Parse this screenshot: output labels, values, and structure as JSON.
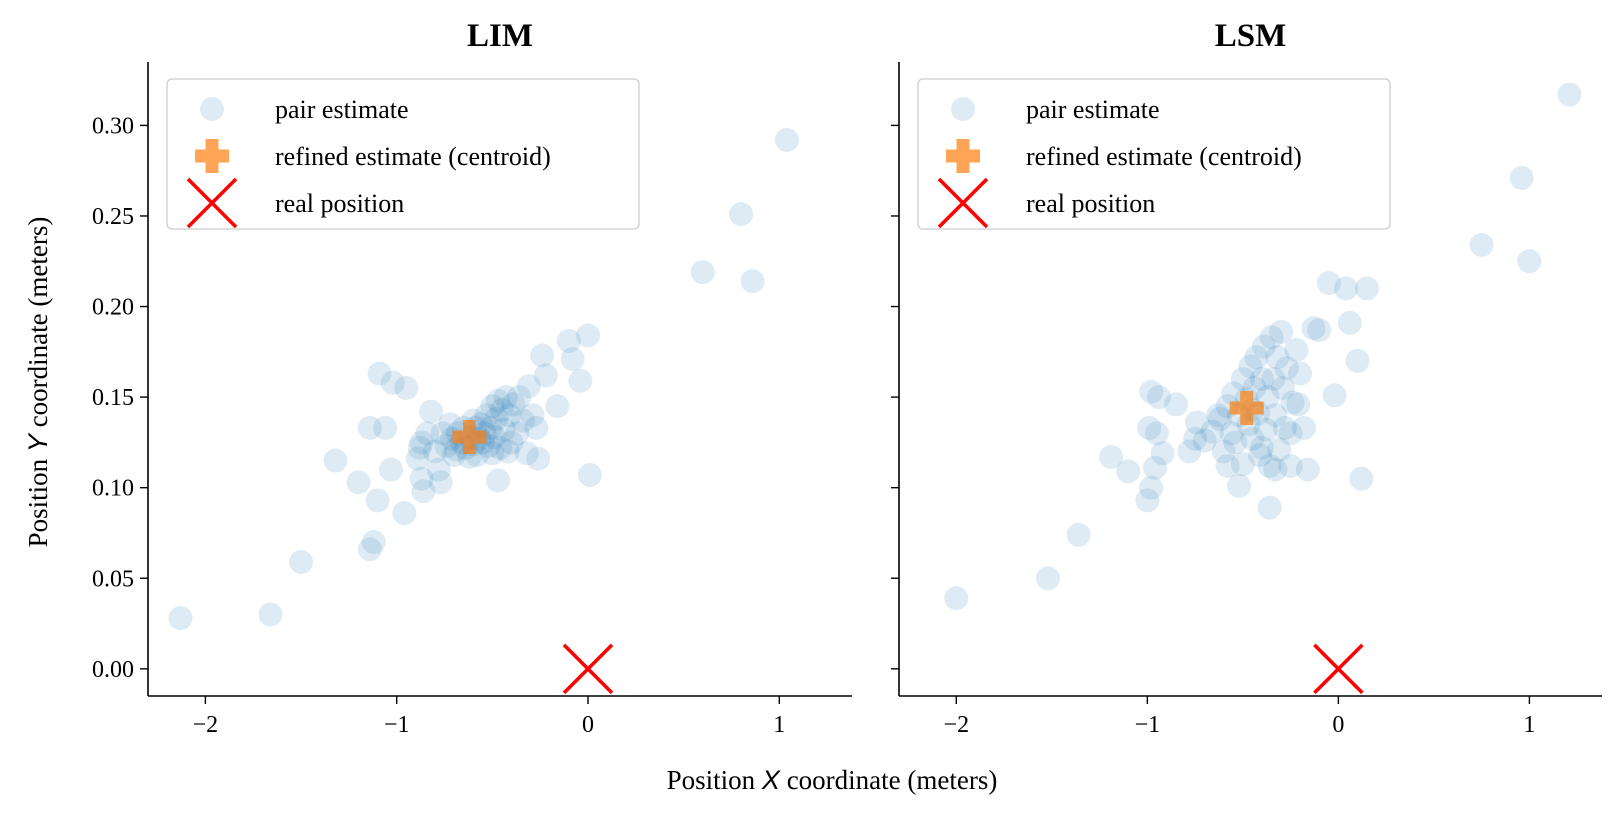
{
  "figure": {
    "ylabel_prefix": "Position ",
    "ylabel_var": "Y",
    "ylabel_suffix": " coordinate (meters)",
    "xlabel_prefix": "Position ",
    "xlabel_var": "X",
    "xlabel_suffix": " coordinate (meters)"
  },
  "legend": [
    {
      "label": "pair estimate",
      "marker": "circle",
      "color": "#1f77b4"
    },
    {
      "label": "refined estimate (centroid)",
      "marker": "plus",
      "color": "#ff7f0e"
    },
    {
      "label": "real position",
      "marker": "x",
      "color": "#ff0000"
    }
  ],
  "chart_data": [
    {
      "type": "scatter",
      "title": "LIM",
      "xlim": [
        -2.3,
        1.38
      ],
      "ylim": [
        -0.015,
        0.335
      ],
      "xticks": [
        -2,
        -1,
        0,
        1
      ],
      "xtick_labels": [
        "−2",
        "−1",
        "0",
        "1"
      ],
      "yticks": [
        0.0,
        0.05,
        0.1,
        0.15,
        0.2,
        0.25,
        0.3
      ],
      "ytick_labels": [
        "0.00",
        "0.05",
        "0.10",
        "0.15",
        "0.20",
        "0.25",
        "0.30"
      ],
      "grid": false,
      "legend_position": "upper-left",
      "series": [
        {
          "name": "pair estimate",
          "kind": "scatter",
          "color": "#1f77b4",
          "alpha": 0.15,
          "points": [
            [
              -2.13,
              0.028
            ],
            [
              -1.66,
              0.03
            ],
            [
              -1.5,
              0.059
            ],
            [
              -1.32,
              0.115
            ],
            [
              -1.2,
              0.103
            ],
            [
              -1.14,
              0.066
            ],
            [
              -1.12,
              0.07
            ],
            [
              -1.1,
              0.093
            ],
            [
              -1.06,
              0.133
            ],
            [
              -1.09,
              0.163
            ],
            [
              -1.02,
              0.158
            ],
            [
              -1.03,
              0.11
            ],
            [
              -0.96,
              0.086
            ],
            [
              -0.95,
              0.155
            ],
            [
              -0.89,
              0.116
            ],
            [
              -0.87,
              0.125
            ],
            [
              -0.87,
              0.105
            ],
            [
              -0.86,
              0.098
            ],
            [
              -0.84,
              0.13
            ],
            [
              -0.82,
              0.142
            ],
            [
              -0.8,
              0.12
            ],
            [
              -0.78,
              0.11
            ],
            [
              -0.77,
              0.103
            ],
            [
              -0.76,
              0.13
            ],
            [
              -0.74,
              0.123
            ],
            [
              -0.72,
              0.135
            ],
            [
              -0.71,
              0.127
            ],
            [
              -0.7,
              0.118
            ],
            [
              -0.68,
              0.13
            ],
            [
              -0.66,
              0.125
            ],
            [
              -0.65,
              0.133
            ],
            [
              -0.64,
              0.122
            ],
            [
              -0.62,
              0.128
            ],
            [
              -0.6,
              0.124
            ],
            [
              -0.59,
              0.133
            ],
            [
              -0.58,
              0.118
            ],
            [
              -0.57,
              0.127
            ],
            [
              -0.56,
              0.135
            ],
            [
              -0.55,
              0.125
            ],
            [
              -0.54,
              0.13
            ],
            [
              -0.53,
              0.14
            ],
            [
              -0.52,
              0.123
            ],
            [
              -0.51,
              0.133
            ],
            [
              -0.5,
              0.145
            ],
            [
              -0.49,
              0.128
            ],
            [
              -0.48,
              0.138
            ],
            [
              -0.47,
              0.148
            ],
            [
              -0.46,
              0.122
            ],
            [
              -0.45,
              0.143
            ],
            [
              -0.44,
              0.132
            ],
            [
              -0.43,
              0.15
            ],
            [
              -0.42,
              0.12
            ],
            [
              -0.41,
              0.14
            ],
            [
              -0.4,
              0.125
            ],
            [
              -0.39,
              0.146
            ],
            [
              -0.37,
              0.13
            ],
            [
              -0.36,
              0.15
            ],
            [
              -0.34,
              0.137
            ],
            [
              -0.32,
              0.119
            ],
            [
              -0.31,
              0.156
            ],
            [
              -0.29,
              0.14
            ],
            [
              -0.27,
              0.133
            ],
            [
              -0.26,
              0.116
            ],
            [
              -0.24,
              0.173
            ],
            [
              -0.22,
              0.162
            ],
            [
              -0.16,
              0.145
            ],
            [
              -0.1,
              0.181
            ],
            [
              -0.08,
              0.171
            ],
            [
              -0.04,
              0.159
            ],
            [
              0.0,
              0.184
            ],
            [
              0.01,
              0.107
            ],
            [
              -0.47,
              0.104
            ],
            [
              -0.62,
              0.117
            ],
            [
              -0.88,
              0.122
            ],
            [
              -0.6,
              0.137
            ],
            [
              -0.69,
              0.121
            ],
            [
              -0.5,
              0.119
            ],
            [
              0.6,
              0.219
            ],
            [
              0.8,
              0.251
            ],
            [
              0.86,
              0.214
            ],
            [
              1.04,
              0.292
            ],
            [
              -1.14,
              0.133
            ]
          ]
        },
        {
          "name": "refined estimate (centroid)",
          "kind": "plus",
          "color": "#ff7f0e",
          "alpha": 0.7,
          "points": [
            [
              -0.62,
              0.128
            ]
          ]
        },
        {
          "name": "real position",
          "kind": "x",
          "color": "#ff0000",
          "alpha": 1,
          "points": [
            [
              0.0,
              0.0
            ]
          ]
        }
      ]
    },
    {
      "type": "scatter",
      "title": "LSM",
      "xlim": [
        -2.3,
        1.38
      ],
      "ylim": [
        -0.015,
        0.335
      ],
      "xticks": [
        -2,
        -1,
        0,
        1
      ],
      "xtick_labels": [
        "−2",
        "−1",
        "0",
        "1"
      ],
      "yticks": [
        0.0,
        0.05,
        0.1,
        0.15,
        0.2,
        0.25,
        0.3
      ],
      "ytick_labels": [
        "",
        "",
        "",
        "",
        "",
        "",
        ""
      ],
      "grid": false,
      "legend_position": "upper-left",
      "series": [
        {
          "name": "pair estimate",
          "kind": "scatter",
          "color": "#1f77b4",
          "alpha": 0.15,
          "points": [
            [
              -2.0,
              0.039
            ],
            [
              -1.52,
              0.05
            ],
            [
              -1.36,
              0.074
            ],
            [
              -1.19,
              0.117
            ],
            [
              -1.1,
              0.109
            ],
            [
              -1.0,
              0.093
            ],
            [
              -0.99,
              0.133
            ],
            [
              -0.98,
              0.1
            ],
            [
              -0.96,
              0.111
            ],
            [
              -0.95,
              0.13
            ],
            [
              -0.98,
              0.153
            ],
            [
              -0.94,
              0.15
            ],
            [
              -0.92,
              0.119
            ],
            [
              -0.85,
              0.146
            ],
            [
              -0.78,
              0.12
            ],
            [
              -0.74,
              0.136
            ],
            [
              -0.7,
              0.126
            ],
            [
              -0.66,
              0.131
            ],
            [
              -0.62,
              0.138
            ],
            [
              -0.6,
              0.12
            ],
            [
              -0.58,
              0.145
            ],
            [
              -0.56,
              0.13
            ],
            [
              -0.55,
              0.152
            ],
            [
              -0.54,
              0.125
            ],
            [
              -0.52,
              0.14
            ],
            [
              -0.5,
              0.16
            ],
            [
              -0.5,
              0.113
            ],
            [
              -0.48,
              0.149
            ],
            [
              -0.47,
              0.135
            ],
            [
              -0.46,
              0.167
            ],
            [
              -0.45,
              0.127
            ],
            [
              -0.44,
              0.155
            ],
            [
              -0.43,
              0.172
            ],
            [
              -0.42,
              0.141
            ],
            [
              -0.41,
              0.118
            ],
            [
              -0.4,
              0.16
            ],
            [
              -0.39,
              0.178
            ],
            [
              -0.38,
              0.132
            ],
            [
              -0.37,
              0.15
            ],
            [
              -0.36,
              0.112
            ],
            [
              -0.35,
              0.183
            ],
            [
              -0.34,
              0.16
            ],
            [
              -0.33,
              0.14
            ],
            [
              -0.32,
              0.172
            ],
            [
              -0.31,
              0.121
            ],
            [
              -0.3,
              0.186
            ],
            [
              -0.29,
              0.155
            ],
            [
              -0.28,
              0.133
            ],
            [
              -0.27,
              0.166
            ],
            [
              -0.25,
              0.112
            ],
            [
              -0.24,
              0.147
            ],
            [
              -0.22,
              0.176
            ],
            [
              -0.2,
              0.163
            ],
            [
              -0.18,
              0.133
            ],
            [
              -0.16,
              0.11
            ],
            [
              -0.13,
              0.188
            ],
            [
              -0.1,
              0.187
            ],
            [
              -0.05,
              0.213
            ],
            [
              -0.02,
              0.151
            ],
            [
              0.04,
              0.21
            ],
            [
              0.06,
              0.191
            ],
            [
              0.1,
              0.17
            ],
            [
              0.12,
              0.105
            ],
            [
              0.15,
              0.21
            ],
            [
              -0.52,
              0.101
            ],
            [
              -0.36,
              0.089
            ],
            [
              -0.58,
              0.112
            ],
            [
              -0.63,
              0.14
            ],
            [
              -0.75,
              0.127
            ],
            [
              -0.45,
              0.143
            ],
            [
              -0.4,
              0.122
            ],
            [
              -0.33,
              0.11
            ],
            [
              -0.21,
              0.146
            ],
            [
              -0.25,
              0.13
            ],
            [
              0.75,
              0.234
            ],
            [
              0.96,
              0.271
            ],
            [
              1.0,
              0.225
            ],
            [
              1.21,
              0.317
            ]
          ]
        },
        {
          "name": "refined estimate (centroid)",
          "kind": "plus",
          "color": "#ff7f0e",
          "alpha": 0.7,
          "points": [
            [
              -0.48,
              0.144
            ]
          ]
        },
        {
          "name": "real position",
          "kind": "x",
          "color": "#ff0000",
          "alpha": 1,
          "points": [
            [
              0.0,
              0.0
            ]
          ]
        }
      ]
    }
  ]
}
